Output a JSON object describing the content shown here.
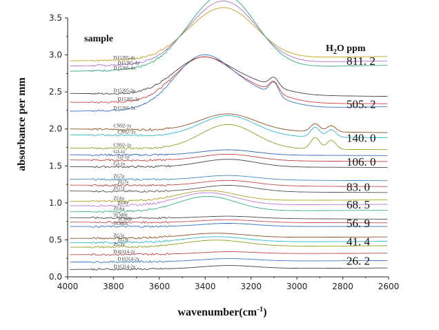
{
  "chart_data": {
    "type": "line",
    "xlabel": "wavenumber(cm",
    "xlabel_sup": "-1",
    "xlabel_end": ")",
    "ylabel": "absorbance per mm",
    "xlim": [
      4000,
      2600
    ],
    "ylim": [
      0.0,
      3.5
    ],
    "x_ticks": [
      "4000",
      "3800",
      "3600",
      "3400",
      "3200",
      "3000",
      "2800",
      "2600"
    ],
    "y_ticks": [
      "0.0",
      "0.5",
      "1.0",
      "1.5",
      "2.0",
      "2.5",
      "3.0",
      "3.5"
    ],
    "header_left": "sample",
    "header_right": "H",
    "header_right_sub": "2",
    "header_right_end": "O ppm",
    "groups": [
      {
        "ppm": "811. 2",
        "samples": [
          "D15395-4z",
          "D15395-4y",
          "D15395-4x"
        ],
        "colors": [
          "#c8a020",
          "#b070c8",
          "#30a878"
        ],
        "base": [
          2.92,
          2.85,
          2.78
        ],
        "end": [
          2.98,
          2.92,
          2.86
        ],
        "peaks": [
          [
            3420,
            0.5
          ],
          [
            3300,
            0.45
          ],
          [
            3250,
            0.42
          ]
        ]
      },
      {
        "ppm": "505. 2",
        "samples": [
          "D15395-3y",
          "D15395-3z",
          "D15395-3x"
        ],
        "colors": [
          "#404040",
          "#d04040",
          "#3870c0"
        ],
        "base": [
          2.48,
          2.36,
          2.24
        ],
        "end": [
          2.44,
          2.34,
          2.3
        ],
        "peaks": [
          [
            3430,
            0.55
          ],
          [
            3380,
            0.28
          ],
          [
            3180,
            0.22
          ],
          [
            3100,
            0.2
          ]
        ]
      },
      {
        "ppm": "140. 0",
        "samples": [
          "CN92-1y",
          "CN92-1x",
          "CN92-1z"
        ],
        "colors": [
          "#8a5020",
          "#30b8d0",
          "#90a020"
        ],
        "base": [
          2.0,
          1.92,
          1.74
        ],
        "end": [
          1.95,
          1.88,
          1.72
        ],
        "peaks": [
          [
            3300,
            0.38
          ],
          [
            2920,
            0.18
          ],
          [
            2850,
            0.14
          ]
        ]
      },
      {
        "ppm": "106. 0",
        "samples": [
          "GJ-1z",
          "GJ-1y",
          "GJ-1x"
        ],
        "colors": [
          "#3060c0",
          "#c04040",
          "#404040"
        ],
        "base": [
          1.65,
          1.58,
          1.49
        ],
        "end": [
          1.64,
          1.56,
          1.48
        ],
        "peaks": [
          [
            3300,
            0.12
          ]
        ]
      },
      {
        "ppm": "83. 0",
        "samples": [
          "ZG7z",
          "ZG7y",
          "ZG7x"
        ],
        "colors": [
          "#3a8ac8",
          "#c04a4a",
          "#505050"
        ],
        "base": [
          1.32,
          1.24,
          1.16
        ],
        "end": [
          1.3,
          1.22,
          1.14
        ],
        "peaks": [
          [
            3300,
            0.1
          ]
        ]
      },
      {
        "ppm": "68. 5",
        "samples": [
          "ZG6z",
          "ZG6y",
          "ZG6x"
        ],
        "colors": [
          "#b0a020",
          "#c07ad0",
          "#38b088"
        ],
        "base": [
          1.02,
          0.96,
          0.88
        ],
        "end": [
          1.04,
          0.98,
          0.9
        ],
        "peaks": [
          [
            3420,
            0.14
          ],
          [
            3350,
            0.1
          ]
        ]
      },
      {
        "ppm": "56. 9",
        "samples": [
          "91500z",
          "91500y",
          "91500x"
        ],
        "colors": [
          "#4a4a4a",
          "#c85050",
          "#3070c0"
        ],
        "base": [
          0.8,
          0.74,
          0.68
        ],
        "end": [
          0.78,
          0.73,
          0.68
        ],
        "peaks": [
          [
            3300,
            0.05
          ]
        ]
      },
      {
        "ppm": "41. 4",
        "samples": [
          "ZG3z",
          "ZG3y",
          "ZG3x"
        ],
        "colors": [
          "#8a5020",
          "#30b8d0",
          "#90a020"
        ],
        "base": [
          0.52,
          0.46,
          0.4
        ],
        "end": [
          0.54,
          0.48,
          0.42
        ],
        "peaks": [
          [
            3400,
            0.06
          ],
          [
            3300,
            0.05
          ]
        ]
      },
      {
        "ppm": "26. 2",
        "samples": [
          "D16314-2z",
          "D16314-2y",
          "D16314-2x"
        ],
        "colors": [
          "#c04040",
          "#3a78c8",
          "#404040"
        ],
        "base": [
          0.3,
          0.2,
          0.1
        ],
        "end": [
          0.32,
          0.22,
          0.12
        ],
        "peaks": [
          [
            3300,
            0.05
          ]
        ]
      }
    ]
  }
}
